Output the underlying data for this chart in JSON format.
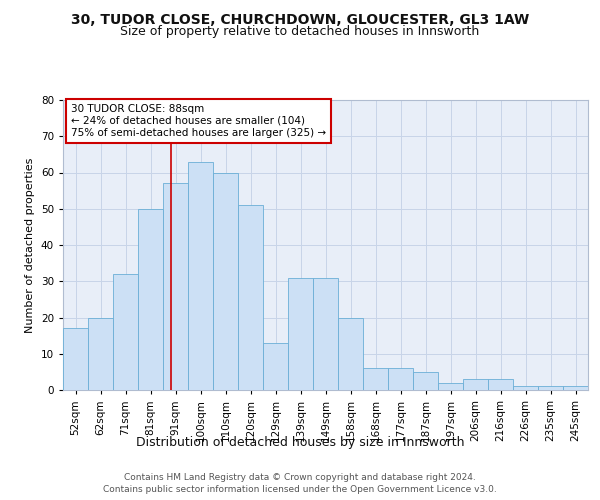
{
  "title1": "30, TUDOR CLOSE, CHURCHDOWN, GLOUCESTER, GL3 1AW",
  "title2": "Size of property relative to detached houses in Innsworth",
  "xlabel": "Distribution of detached houses by size in Innsworth",
  "ylabel": "Number of detached properties",
  "categories": [
    "52sqm",
    "62sqm",
    "71sqm",
    "81sqm",
    "91sqm",
    "100sqm",
    "110sqm",
    "120sqm",
    "129sqm",
    "139sqm",
    "149sqm",
    "158sqm",
    "168sqm",
    "177sqm",
    "187sqm",
    "197sqm",
    "206sqm",
    "216sqm",
    "226sqm",
    "235sqm",
    "245sqm"
  ],
  "values": [
    17,
    20,
    32,
    50,
    57,
    63,
    60,
    51,
    13,
    31,
    31,
    20,
    6,
    6,
    5,
    2,
    3,
    3,
    1,
    1,
    1
  ],
  "bar_color": "#cce0f5",
  "bar_edge_color": "#6aaed6",
  "bar_width": 1.0,
  "vline_color": "#cc0000",
  "vline_x": 3.8,
  "annotation_line1": "30 TUDOR CLOSE: 88sqm",
  "annotation_line2": "← 24% of detached houses are smaller (104)",
  "annotation_line3": "75% of semi-detached houses are larger (325) →",
  "ylim": [
    0,
    80
  ],
  "yticks": [
    0,
    10,
    20,
    30,
    40,
    50,
    60,
    70,
    80
  ],
  "grid_color": "#c8d4e8",
  "background_color": "#e8eef8",
  "footer1": "Contains HM Land Registry data © Crown copyright and database right 2024.",
  "footer2": "Contains public sector information licensed under the Open Government Licence v3.0.",
  "title1_fontsize": 10,
  "title2_fontsize": 9,
  "ylabel_fontsize": 8,
  "xlabel_fontsize": 9,
  "tick_fontsize": 7.5,
  "footer_fontsize": 6.5,
  "ann_fontsize": 7.5
}
